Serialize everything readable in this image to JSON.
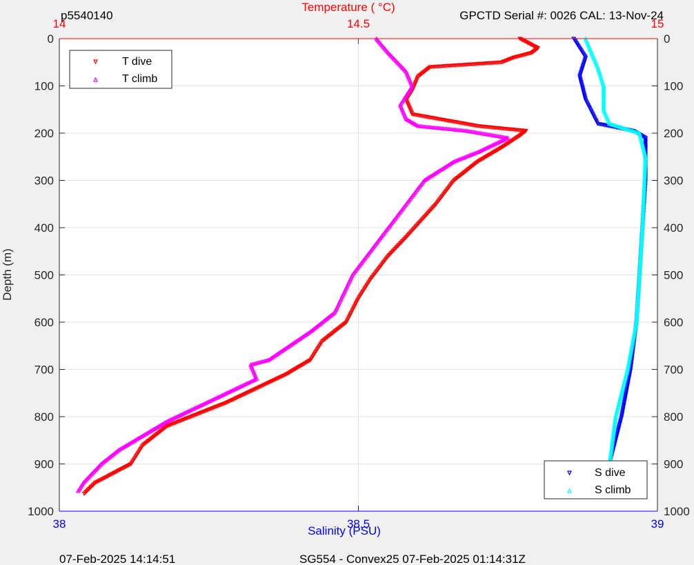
{
  "header": {
    "left": "p5540140",
    "right": "GPCTD Serial #: 0026 CAL: 13-Nov-24"
  },
  "footer": {
    "left": "07-Feb-2025 14:14:51",
    "center": "SG554 - Convex25 07-Feb-2025 01:14:31Z"
  },
  "colors": {
    "temperature_axis": "#ff0000",
    "salinity_axis": "#0000ff",
    "t_dive": "#ff0000",
    "t_climb": "#ff00ff",
    "s_dive": "#0000ff",
    "s_climb": "#00ffff"
  },
  "chart_data": {
    "type": "scatter",
    "grid": true,
    "y_axis": {
      "label": "Depth (m)",
      "range": [
        0,
        1000
      ],
      "reversed": true,
      "ticks": [
        "0",
        "100",
        "200",
        "300",
        "400",
        "500",
        "600",
        "700",
        "800",
        "900",
        "1000"
      ]
    },
    "top_axis": {
      "label": "Temperature (    °C)",
      "range": [
        14,
        15
      ],
      "ticks": [
        "14",
        "14.5",
        "15"
      ]
    },
    "bottom_axis": {
      "label": "Salinity (PSU)",
      "range": [
        38,
        39
      ],
      "ticks": [
        "38",
        "38.5",
        "39"
      ]
    },
    "legends": [
      {
        "position": "top-left",
        "entries": [
          "T dive",
          "T climb"
        ]
      },
      {
        "position": "bottom-right",
        "entries": [
          "S dive",
          "S climb"
        ]
      }
    ],
    "series": [
      {
        "name": "T dive",
        "axis": "temperature",
        "marker": "triangle-down",
        "points": [
          [
            14.77,
            0
          ],
          [
            14.8,
            20
          ],
          [
            14.79,
            30
          ],
          [
            14.76,
            40
          ],
          [
            14.74,
            50
          ],
          [
            14.62,
            60
          ],
          [
            14.6,
            80
          ],
          [
            14.59,
            110
          ],
          [
            14.58,
            130
          ],
          [
            14.59,
            160
          ],
          [
            14.7,
            185
          ],
          [
            14.78,
            195
          ],
          [
            14.77,
            205
          ],
          [
            14.74,
            230
          ],
          [
            14.7,
            260
          ],
          [
            14.66,
            300
          ],
          [
            14.63,
            350
          ],
          [
            14.58,
            420
          ],
          [
            14.55,
            460
          ],
          [
            14.52,
            510
          ],
          [
            14.5,
            550
          ],
          [
            14.48,
            600
          ],
          [
            14.44,
            640
          ],
          [
            14.42,
            680
          ],
          [
            14.38,
            710
          ],
          [
            14.33,
            740
          ],
          [
            14.28,
            770
          ],
          [
            14.24,
            790
          ],
          [
            14.18,
            820
          ],
          [
            14.14,
            860
          ],
          [
            14.12,
            900
          ],
          [
            14.06,
            940
          ],
          [
            14.04,
            965
          ]
        ]
      },
      {
        "name": "T climb",
        "axis": "temperature",
        "marker": "triangle-up",
        "points": [
          [
            14.53,
            0
          ],
          [
            14.55,
            30
          ],
          [
            14.58,
            70
          ],
          [
            14.59,
            100
          ],
          [
            14.57,
            140
          ],
          [
            14.58,
            170
          ],
          [
            14.6,
            185
          ],
          [
            14.68,
            195
          ],
          [
            14.75,
            210
          ],
          [
            14.7,
            240
          ],
          [
            14.66,
            260
          ],
          [
            14.61,
            300
          ],
          [
            14.58,
            350
          ],
          [
            14.55,
            400
          ],
          [
            14.52,
            450
          ],
          [
            14.49,
            500
          ],
          [
            14.46,
            580
          ],
          [
            14.42,
            620
          ],
          [
            14.35,
            680
          ],
          [
            14.32,
            690
          ],
          [
            14.33,
            720
          ],
          [
            14.28,
            750
          ],
          [
            14.23,
            780
          ],
          [
            14.18,
            810
          ],
          [
            14.14,
            840
          ],
          [
            14.1,
            870
          ],
          [
            14.07,
            900
          ],
          [
            14.04,
            940
          ],
          [
            14.03,
            960
          ]
        ]
      },
      {
        "name": "S dive",
        "axis": "salinity",
        "marker": "triangle-down",
        "points": [
          [
            38.86,
            0
          ],
          [
            38.87,
            20
          ],
          [
            38.88,
            40
          ],
          [
            38.87,
            80
          ],
          [
            38.88,
            130
          ],
          [
            38.9,
            180
          ],
          [
            38.96,
            195
          ],
          [
            38.98,
            210
          ],
          [
            38.98,
            300
          ],
          [
            38.975,
            400
          ],
          [
            38.97,
            500
          ],
          [
            38.965,
            600
          ],
          [
            38.955,
            700
          ],
          [
            38.94,
            800
          ],
          [
            38.92,
            900
          ],
          [
            38.91,
            960
          ]
        ]
      },
      {
        "name": "S climb",
        "axis": "salinity",
        "marker": "triangle-up",
        "points": [
          [
            38.88,
            0
          ],
          [
            38.89,
            30
          ],
          [
            38.9,
            60
          ],
          [
            38.91,
            100
          ],
          [
            38.91,
            150
          ],
          [
            38.92,
            180
          ],
          [
            38.97,
            200
          ],
          [
            38.98,
            250
          ],
          [
            38.975,
            400
          ],
          [
            38.97,
            500
          ],
          [
            38.965,
            600
          ],
          [
            38.95,
            700
          ],
          [
            38.93,
            800
          ],
          [
            38.92,
            900
          ],
          [
            38.91,
            960
          ]
        ]
      }
    ]
  }
}
